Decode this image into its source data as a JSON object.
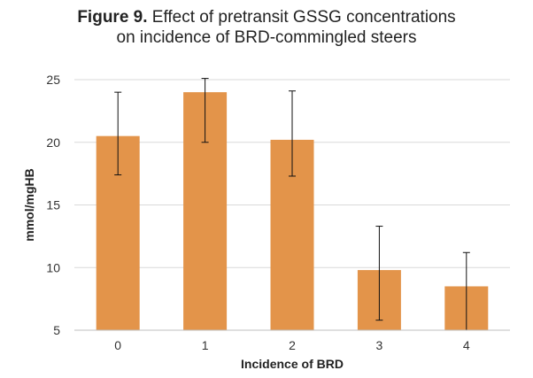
{
  "figure": {
    "label": "Figure 9.",
    "title_line1": "Effect of pretransit GSSG concentrations",
    "title_line2": "on incidence of BRD-commingled steers"
  },
  "chart_data": {
    "type": "bar",
    "categories": [
      "0",
      "1",
      "2",
      "3",
      "4"
    ],
    "values": [
      20.5,
      24.0,
      20.2,
      9.8,
      8.5
    ],
    "error_low": [
      17.4,
      20.0,
      17.3,
      5.8,
      5.0
    ],
    "error_high": [
      24.0,
      25.1,
      24.1,
      13.3,
      11.2
    ],
    "xlabel": "Incidence of BRD",
    "ylabel": "mmol/mgHB",
    "ylim": [
      5,
      25
    ],
    "yticks": [
      5,
      10,
      15,
      20,
      25
    ],
    "bar_color": "#E3944A",
    "grid": true
  }
}
